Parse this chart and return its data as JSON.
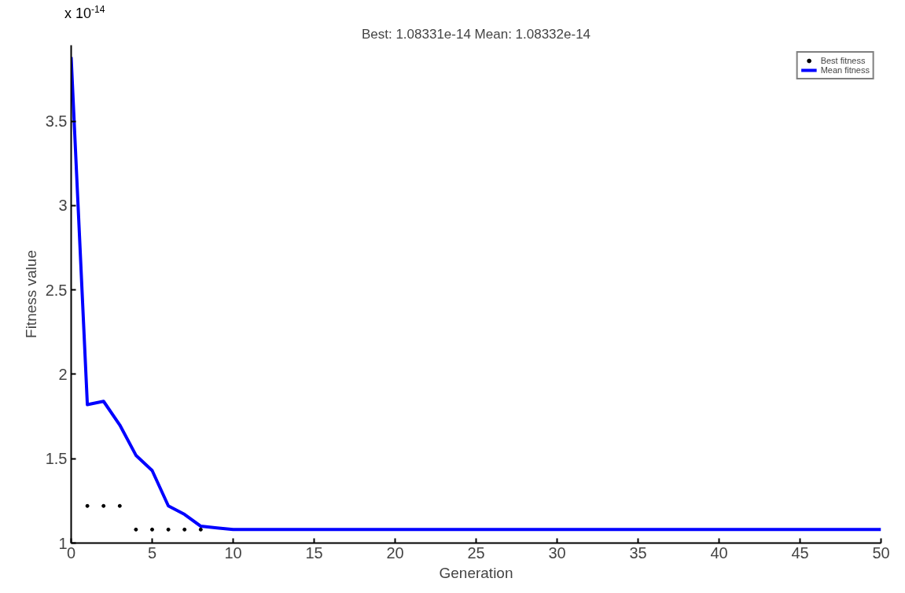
{
  "chart_data": {
    "type": "line",
    "title": "Best: 1.08331e-14 Mean: 1.08332e-14",
    "xlabel": "Generation",
    "ylabel": "Fitness value",
    "annotations": [
      "x 10$^{-14}$"
    ],
    "x": [
      0,
      1,
      2,
      3,
      4,
      5,
      6,
      7,
      8,
      9,
      10,
      15,
      20,
      25,
      30,
      35,
      40,
      45,
      50
    ],
    "series": [
      {
        "name": "Best fitness",
        "type": "scatter",
        "marker": "circle",
        "color": "#000000",
        "x": [
          1,
          2,
          3,
          4,
          5,
          6,
          7,
          8
        ],
        "values": [
          1.22,
          1.22,
          1.22,
          1.08,
          1.08,
          1.08,
          1.08,
          1.08
        ]
      },
      {
        "name": "Mean fitness",
        "color": "#0000ff",
        "values": [
          3.88,
          1.82,
          1.84,
          1.7,
          1.52,
          1.43,
          1.22,
          1.17,
          1.1,
          1.09,
          1.08,
          1.08,
          1.08,
          1.08,
          1.08,
          1.08,
          1.08,
          1.08,
          1.08
        ]
      }
    ],
    "xlim": [
      0,
      50
    ],
    "ylim": [
      1,
      3.95
    ],
    "xticks": [
      0,
      5,
      10,
      15,
      20,
      25,
      30,
      35,
      40,
      45,
      50
    ],
    "yticks": [
      1,
      1.5,
      2,
      2.5,
      3,
      3.5
    ],
    "legend": "top right",
    "grid": false
  }
}
